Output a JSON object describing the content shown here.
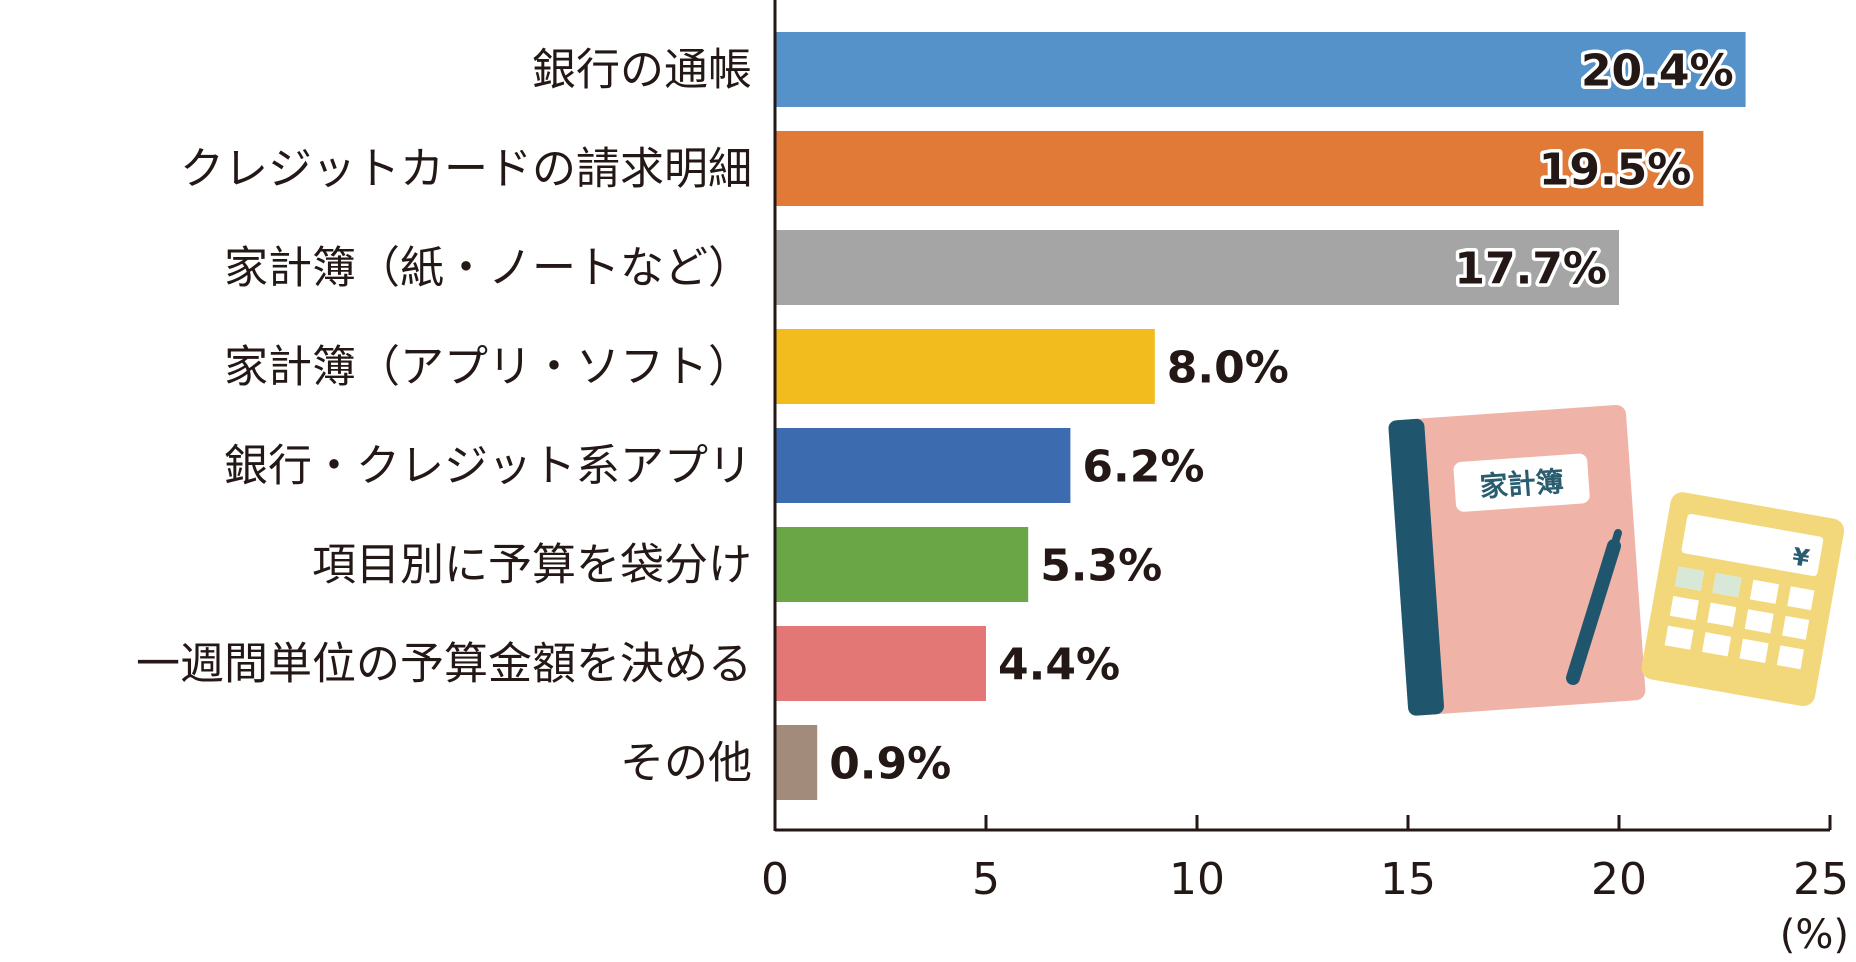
{
  "chart_data": {
    "type": "bar",
    "orientation": "horizontal",
    "categories": [
      "銀行の通帳",
      "クレジットカードの請求明細",
      "家計簿（紙・ノートなど）",
      "家計簿（アプリ・ソフト）",
      "銀行・クレジット系アプリ",
      "項目別に予算を袋分け",
      "一週間単位の予算金額を決める",
      "その他"
    ],
    "values": [
      23,
      22,
      20,
      9,
      7,
      6,
      5,
      1
    ],
    "value_labels": [
      "20.4%",
      "19.5%",
      "17.7%",
      "8.0%",
      "6.2%",
      "5.3%",
      "4.4%",
      "0.9%"
    ],
    "colors": [
      "#5592c9",
      "#e07a36",
      "#a5a5a5",
      "#f2bc1f",
      "#3d6bb0",
      "#6aa646",
      "#e37775",
      "#a38b7b"
    ],
    "xlim": [
      0,
      25
    ],
    "xticks": [
      "0",
      "5",
      "10",
      "15",
      "20",
      "25"
    ],
    "unit": "(%)",
    "grid": false
  },
  "illustration": {
    "notebook_label": "家計簿",
    "calculator_symbol": "¥"
  }
}
